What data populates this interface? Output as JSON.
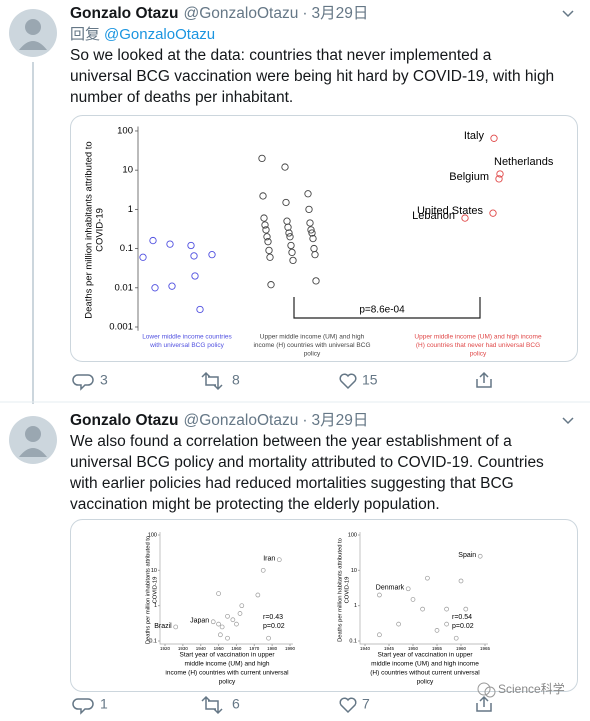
{
  "separator": "·",
  "tweets": [
    {
      "author": "Gonzalo Otazu",
      "handle": "@GonzaloOtazu",
      "date": "3月29日",
      "reply_prefix": "回复",
      "reply_to": "@GonzaloOtazu",
      "text": [
        "So we looked at the data: countries that never implemented a",
        "universal BCG vaccination were being hit hard by COVID-19, with high",
        "number of deaths per inhabitant."
      ],
      "actions": {
        "replies": 3,
        "retweets": 8,
        "likes": 15
      },
      "figure": {
        "type": "strip",
        "y_label": [
          "Deaths per million inhabitants attributed to",
          "COVID-19"
        ],
        "log_y": true,
        "ylim": [
          0.0008,
          130
        ],
        "yticks": [
          100,
          10,
          1,
          0.1,
          0.01,
          0.001
        ],
        "p_value": "p=8.6e-04",
        "groups": [
          {
            "name": [
              "Lower middle income countries",
              "with universal BCG policy"
            ],
            "color": "#5050e0",
            "values": [
              0.16,
              0.13,
              0.12,
              0.06,
              0.065,
              0.07,
              0.02,
              0.011,
              0.01,
              0.0028
            ]
          },
          {
            "name": [
              "Upper middle income (UM)  and high",
              "income (H) countries with universal BCG",
              "policy"
            ],
            "color": "#444444",
            "values": [
              20,
              12,
              2.5,
              2.2,
              1.5,
              1,
              0.6,
              0.5,
              0.45,
              0.4,
              0.35,
              0.3,
              0.3,
              0.25,
              0.25,
              0.2,
              0.2,
              0.18,
              0.15,
              0.12,
              0.1,
              0.09,
              0.08,
              0.07,
              0.06,
              0.05,
              0.015,
              0.012
            ]
          },
          {
            "name": [
              "Upper middle income (UM) and high income",
              "(H) countries that never had universal BCG",
              "policy"
            ],
            "color": "#e04848",
            "values": [
              65,
              8,
              6,
              0.8,
              0.6
            ],
            "labels": [
              "Italy",
              "Netherlands",
              "Belgium",
              "United States",
              "Lebanon"
            ]
          }
        ]
      }
    },
    {
      "author": "Gonzalo Otazu",
      "handle": "@GonzaloOtazu",
      "date": "3月29日",
      "text": [
        "We also found a correlation between the year  establishment of a",
        "universal BCG policy and mortality attributed to COVID-19. Countries",
        "with earlier policies had reduced mortalities suggesting that BCG",
        "vaccination might be protecting the elderly population."
      ],
      "actions": {
        "replies": 1,
        "retweets": 6,
        "likes": 7
      },
      "figure": {
        "panels": [
          {
            "type": "scatter",
            "y_label": [
              "Deaths per million inhabitants attributed to",
              "COVID-19"
            ],
            "x_label": [
              "Start year of vaccination in upper",
              "middle income (UM)  and high",
              "income (H) countries with current universal",
              "policy"
            ],
            "log_y": true,
            "ylim": [
              0.1,
              100
            ],
            "yticks": [
              100,
              10,
              1,
              0.1
            ],
            "xlim": [
              1920,
              1990
            ],
            "xticks": [
              1920,
              1930,
              1940,
              1950,
              1960,
              1970,
              1980,
              1990
            ],
            "stats": [
              "r=0.43",
              "p=0.02"
            ],
            "points": [
              {
                "x": 1984,
                "y": 20,
                "label": "Iran"
              },
              {
                "x": 1975,
                "y": 10
              },
              {
                "x": 1972,
                "y": 2
              },
              {
                "x": 1950,
                "y": 2.2
              },
              {
                "x": 1963,
                "y": 1
              },
              {
                "x": 1955,
                "y": 0.5
              },
              {
                "x": 1958,
                "y": 0.4
              },
              {
                "x": 1960,
                "y": 0.3
              },
              {
                "x": 1950,
                "y": 0.3
              },
              {
                "x": 1952,
                "y": 0.25
              },
              {
                "x": 1947,
                "y": 0.35,
                "label": "Japan"
              },
              {
                "x": 1951,
                "y": 0.15
              },
              {
                "x": 1955,
                "y": 0.12
              },
              {
                "x": 1962,
                "y": 0.6
              },
              {
                "x": 1926,
                "y": 0.25,
                "label": "Brazil"
              },
              {
                "x": 1978,
                "y": 0.12
              }
            ]
          },
          {
            "type": "scatter",
            "y_label": [
              "Deaths per million habitants attributed to",
              "COVID-19"
            ],
            "x_label": [
              "Start year of vaccination in upper",
              "middle income (UM) and high income",
              "(H) countries without current universal",
              "policy"
            ],
            "log_y": true,
            "ylim": [
              0.1,
              100
            ],
            "yticks": [
              100,
              10,
              1,
              0.1
            ],
            "xlim": [
              1940,
              1965
            ],
            "xticks": [
              1940,
              1945,
              1950,
              1955,
              1960,
              1965
            ],
            "stats": [
              "r=0.54",
              "p=0.02"
            ],
            "points": [
              {
                "x": 1964,
                "y": 25,
                "label": "Spain"
              },
              {
                "x": 1960,
                "y": 5
              },
              {
                "x": 1953,
                "y": 6
              },
              {
                "x": 1943,
                "y": 2
              },
              {
                "x": 1949,
                "y": 3,
                "label": "Denmark"
              },
              {
                "x": 1950,
                "y": 1.5
              },
              {
                "x": 1952,
                "y": 0.8
              },
              {
                "x": 1957,
                "y": 0.8
              },
              {
                "x": 1961,
                "y": 0.8
              },
              {
                "x": 1957,
                "y": 0.3
              },
              {
                "x": 1955,
                "y": 0.2
              },
              {
                "x": 1947,
                "y": 0.3
              },
              {
                "x": 1943,
                "y": 0.15
              },
              {
                "x": 1959,
                "y": 0.12
              }
            ]
          }
        ]
      }
    }
  ],
  "watermark": "Science科学"
}
